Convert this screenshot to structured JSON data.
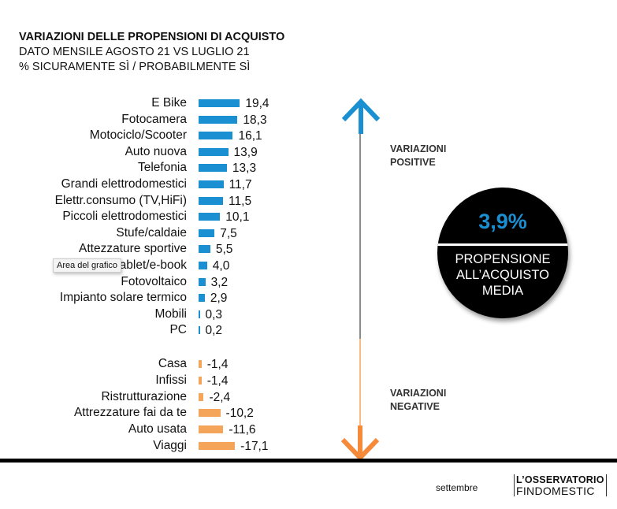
{
  "header": {
    "title": "VARIAZIONI DELLE PROPENSIONI DI ACQUISTO",
    "subtitle1": "DATO MENSILE AGOSTO 21 VS LUGLIO 21",
    "subtitle2": "% SICURAMENTE SÌ / PROBABILMENTE SÌ"
  },
  "chart_data": {
    "type": "bar",
    "orientation": "horizontal",
    "categories": [
      "E Bike",
      "Fotocamera",
      "Motociclo/Scooter",
      "Auto nuova",
      "Telefonia",
      "Grandi elettrodomestici",
      "Elettr.consumo (TV,HiFi)",
      "Piccoli elettrodomestici",
      "Stufe/caldaie",
      "Attezzature sportive",
      "Tablet/e-book",
      "Fotovoltaico",
      "Impianto solare termico",
      "Mobili",
      "PC",
      "Casa",
      "Infissi",
      "Ristrutturazione",
      "Attrezzature fai da te",
      "Auto  usata",
      "Viaggi"
    ],
    "values": [
      19.4,
      18.3,
      16.1,
      13.9,
      13.3,
      11.7,
      11.5,
      10.1,
      7.5,
      5.5,
      4.0,
      3.2,
      2.9,
      0.3,
      0.2,
      -1.4,
      -1.4,
      -2.4,
      -10.2,
      -11.6,
      -17.1
    ],
    "value_labels": [
      "19,4",
      "18,3",
      "16,1",
      "13,9",
      "13,3",
      "11,7",
      "11,5",
      "10,1",
      "7,5",
      "5,5",
      "4,0",
      "3,2",
      "2,9",
      "0,3",
      "0,2",
      "-1,4",
      "-1,4",
      "-2,4",
      "-10,2",
      "-11,6",
      "-17,1"
    ],
    "colors": {
      "positive": "#1a8fd1",
      "negative": "#f5a55a"
    }
  },
  "tooltip": "Area del grafico",
  "arrows": {
    "positive_color": "#1a8fd1",
    "negative_color": "#f58a3a"
  },
  "side": {
    "positive": [
      "VARIAZIONI",
      "POSITIVE"
    ],
    "negative": [
      "VARIAZIONI",
      "NEGATIVE"
    ]
  },
  "badge": {
    "value": "3,9%",
    "label": [
      "PROPENSIONE",
      "ALL’ACQUISTO",
      "MEDIA"
    ]
  },
  "footer": {
    "month": "settembre",
    "logo_line1": "L’OSSERVATORIO",
    "logo_line2": "FINDOMESTIC"
  }
}
